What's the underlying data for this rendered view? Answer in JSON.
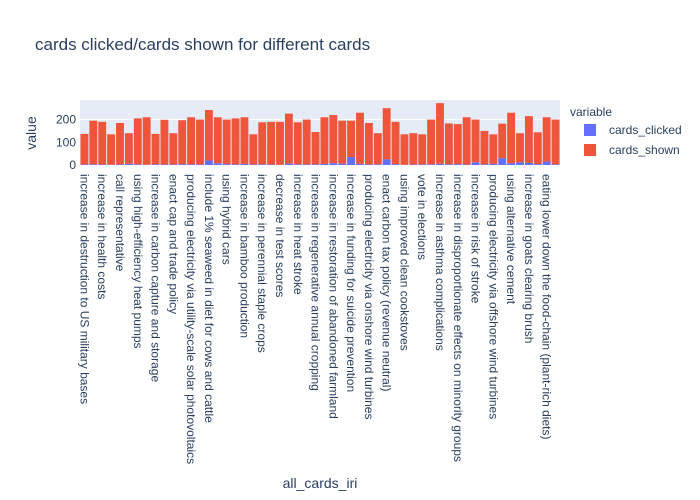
{
  "chart_data": {
    "type": "bar",
    "barmode": "relative",
    "title": "cards clicked/cards shown for different cards",
    "xlabel": "all_cards_iri",
    "ylabel": "value",
    "legend_title": "variable",
    "categories": [
      "increase in destruction to US military bases",
      null,
      "increase in health costs",
      null,
      "call representative",
      null,
      "using high-efficiency heat pumps",
      null,
      "increase in carbon capture and storage",
      null,
      "enact cap and trade policy",
      null,
      "producing electricity via utility-scale solar photovoltaics",
      null,
      "include 1% seaweed in diet for cows and cattle",
      null,
      "using hybrid cars",
      null,
      "increase in bamboo production",
      null,
      "increase in perennial staple crops",
      null,
      "decrease in test scores",
      null,
      "increase in heat stroke",
      null,
      "increase in regenerative annual cropping",
      null,
      "increase in restoration of abandoned farmland",
      null,
      "increase in funding for suicide prevention",
      null,
      "producing electricity via onshore wind turbines",
      null,
      "enact carbon tax policy (revenue neutral)",
      null,
      "using improved clean cookstoves",
      null,
      "vote in elections",
      null,
      "increase in asthma complications",
      null,
      "increase in disproportionate effects on minority groups",
      null,
      "increase in risk of stroke",
      null,
      "producing electricity via offshore wind turbines",
      null,
      "using alternative cement",
      null,
      "increase in goats clearing brush",
      null,
      "eating lower down the food-chain (plant-rich diets)",
      null
    ],
    "series": [
      {
        "name": "cards_clicked",
        "color": "#636efa",
        "values": [
          2,
          3,
          2,
          1,
          2,
          5,
          3,
          1,
          3,
          2,
          2,
          4,
          3,
          3,
          20,
          8,
          4,
          3,
          5,
          2,
          3,
          2,
          1,
          6,
          3,
          2,
          3,
          5,
          8,
          6,
          35,
          5,
          2,
          3,
          25,
          4,
          1,
          2,
          2,
          3,
          5,
          3,
          4,
          2,
          12,
          3,
          5,
          30,
          8,
          12,
          10,
          4,
          15,
          3
        ]
      },
      {
        "name": "cards_shown",
        "color": "#EF553B",
        "values": [
          135,
          192,
          188,
          134,
          183,
          135,
          202,
          209,
          134,
          197,
          138,
          193,
          207,
          197,
          222,
          202,
          196,
          202,
          205,
          133,
          185,
          188,
          189,
          220,
          185,
          198,
          142,
          205,
          212,
          189,
          160,
          225,
          183,
          137,
          225,
          186,
          134,
          138,
          133,
          197,
          267,
          180,
          176,
          208,
          188,
          147,
          130,
          152,
          222,
          128,
          205,
          140,
          195,
          197
        ]
      }
    ],
    "ylim": [
      0,
      286
    ],
    "yticks": [
      0,
      100,
      200
    ],
    "grid": true
  }
}
